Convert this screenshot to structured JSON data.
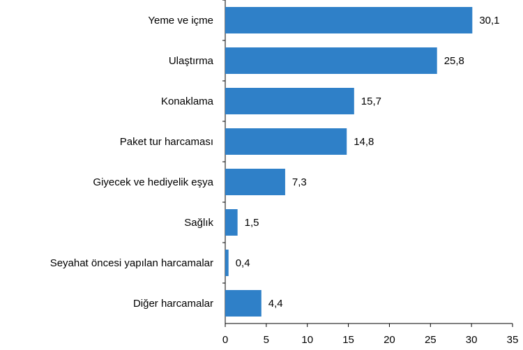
{
  "chart_data": {
    "type": "hbar",
    "categories": [
      "Yeme ve içme",
      "Ulaştırma",
      "Konaklama",
      "Paket tur harcaması",
      "Giyecek ve hediyelik eşya",
      "Sağlık",
      "Seyahat öncesi yapılan harcamalar",
      "Diğer harcamalar"
    ],
    "values": [
      30.1,
      25.8,
      15.7,
      14.8,
      7.3,
      1.5,
      0.4,
      4.4
    ],
    "value_labels": [
      "30,1",
      "25,8",
      "15,7",
      "14,8",
      "7,3",
      "1,5",
      "0,4",
      "4,4"
    ],
    "color": "#2f80c8",
    "xlim": [
      0,
      35
    ],
    "xticks": [
      0,
      5,
      10,
      15,
      20,
      25,
      30,
      35
    ]
  }
}
